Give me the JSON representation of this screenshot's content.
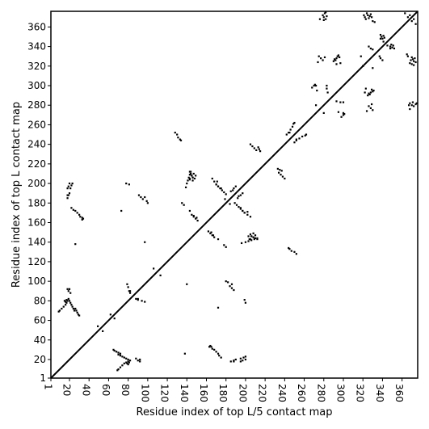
{
  "chart_data": {
    "type": "scatter",
    "xlabel": "Residue index of top L/5 contact map",
    "ylabel": "Residue index of top L contact map",
    "xlim": [
      1,
      376
    ],
    "ylim": [
      1,
      376
    ],
    "x_ticks": [
      1,
      20,
      40,
      60,
      80,
      100,
      120,
      140,
      160,
      180,
      200,
      220,
      240,
      260,
      280,
      300,
      320,
      340,
      360
    ],
    "y_ticks": [
      1,
      20,
      40,
      60,
      80,
      100,
      120,
      140,
      160,
      180,
      200,
      220,
      240,
      260,
      280,
      300,
      320,
      340,
      360
    ],
    "x_tick_labels": [
      "1",
      "20",
      "40",
      "60",
      "80",
      "100",
      "120",
      "140",
      "160",
      "180",
      "200",
      "220",
      "240",
      "260",
      "280",
      "300",
      "320",
      "340",
      "360"
    ],
    "y_tick_labels": [
      "1",
      "20",
      "40",
      "60",
      "80",
      "100",
      "120",
      "140",
      "160",
      "180",
      "200",
      "220",
      "240",
      "260",
      "280",
      "300",
      "320",
      "340",
      "360"
    ],
    "diagonal": {
      "from": [
        1,
        1
      ],
      "to": [
        376,
        376
      ]
    },
    "mark_color": "#000000",
    "series": [
      {
        "points_upper": [
          [
            9,
            69
          ],
          [
            10,
            70
          ],
          [
            12,
            72
          ],
          [
            14,
            74
          ],
          [
            16,
            76
          ],
          [
            17,
            78
          ],
          [
            18,
            80
          ],
          [
            19,
            82
          ],
          [
            20,
            80
          ],
          [
            21,
            78
          ],
          [
            22,
            76
          ],
          [
            23,
            74
          ],
          [
            24,
            72
          ],
          [
            25,
            70
          ],
          [
            26,
            72
          ],
          [
            27,
            70
          ],
          [
            28,
            68
          ],
          [
            29,
            66
          ],
          [
            30,
            65
          ],
          [
            15,
            80
          ],
          [
            16,
            79
          ],
          [
            17,
            81
          ],
          [
            18,
            92
          ],
          [
            19,
            90
          ],
          [
            20,
            92
          ],
          [
            21,
            88
          ],
          [
            18,
            185
          ],
          [
            19,
            188
          ],
          [
            20,
            190
          ],
          [
            21,
            195
          ],
          [
            22,
            198
          ],
          [
            23,
            200
          ],
          [
            20,
            200
          ],
          [
            18,
            195
          ],
          [
            22,
            175
          ],
          [
            24,
            173
          ],
          [
            26,
            172
          ],
          [
            28,
            170
          ],
          [
            30,
            168
          ],
          [
            31,
            166
          ],
          [
            33,
            165
          ],
          [
            34,
            164
          ],
          [
            26,
            138
          ],
          [
            49,
            54
          ],
          [
            62,
            66
          ],
          [
            78,
            200
          ],
          [
            81,
            199
          ],
          [
            91,
            188
          ],
          [
            93,
            186
          ],
          [
            95,
            184
          ],
          [
            97,
            186
          ],
          [
            99,
            182
          ],
          [
            100,
            180
          ],
          [
            73,
            172
          ],
          [
            79,
            97
          ],
          [
            80,
            94
          ],
          [
            81,
            90
          ],
          [
            82,
            88
          ],
          [
            90,
            82
          ],
          [
            97,
            140
          ],
          [
            106,
            113
          ],
          [
            128,
            252
          ],
          [
            130,
            250
          ],
          [
            131,
            247
          ],
          [
            133,
            245
          ],
          [
            134,
            244
          ],
          [
            135,
            180
          ],
          [
            137,
            178
          ],
          [
            139,
            196
          ],
          [
            140,
            200
          ],
          [
            141,
            203
          ],
          [
            142,
            206
          ],
          [
            143,
            209
          ],
          [
            144,
            212
          ],
          [
            145,
            208
          ],
          [
            146,
            206
          ],
          [
            147,
            210
          ],
          [
            148,
            205
          ],
          [
            149,
            208
          ],
          [
            146,
            203
          ],
          [
            143,
            205
          ],
          [
            143,
            172
          ],
          [
            145,
            168
          ],
          [
            147,
            166
          ],
          [
            149,
            164
          ],
          [
            151,
            162
          ],
          [
            163,
            33
          ],
          [
            165,
            150
          ],
          [
            167,
            147
          ],
          [
            166,
            205
          ],
          [
            168,
            202
          ],
          [
            170,
            199
          ],
          [
            172,
            197
          ],
          [
            174,
            195
          ],
          [
            176,
            193
          ],
          [
            178,
            191
          ],
          [
            180,
            189
          ],
          [
            179,
            184
          ],
          [
            185,
            192
          ],
          [
            188,
            195
          ],
          [
            190,
            197
          ],
          [
            193,
            187
          ],
          [
            195,
            175
          ],
          [
            197,
            172
          ],
          [
            199,
            170
          ],
          [
            202,
            171
          ],
          [
            205,
            240
          ],
          [
            207,
            238
          ],
          [
            209,
            236
          ],
          [
            211,
            234
          ],
          [
            213,
            237
          ],
          [
            214,
            235
          ],
          [
            215,
            233
          ],
          [
            204,
            143
          ],
          [
            206,
            146
          ],
          [
            208,
            145
          ],
          [
            210,
            144
          ],
          [
            212,
            143
          ],
          [
            188,
            18
          ],
          [
            197,
            19
          ],
          [
            242,
            250
          ],
          [
            244,
            252
          ],
          [
            246,
            255
          ],
          [
            248,
            258
          ],
          [
            249,
            261
          ],
          [
            250,
            262
          ],
          [
            252,
            245
          ],
          [
            268,
            298
          ],
          [
            270,
            300
          ],
          [
            271,
            301
          ],
          [
            273,
            295
          ],
          [
            272,
            280
          ],
          [
            275,
            330
          ],
          [
            277,
            328
          ],
          [
            279,
            326
          ],
          [
            281,
            329
          ],
          [
            283,
            300
          ],
          [
            284,
            293
          ],
          [
            279,
            372
          ],
          [
            280,
            370
          ],
          [
            281,
            374
          ],
          [
            282,
            375
          ],
          [
            283,
            371
          ],
          [
            276,
            368
          ],
          [
            290,
            325
          ],
          [
            291,
            327
          ],
          [
            292,
            326
          ],
          [
            293,
            328
          ],
          [
            294,
            330
          ],
          [
            295,
            331
          ],
          [
            296,
            329
          ],
          [
            297,
            283
          ],
          [
            300,
            272
          ],
          [
            318,
            330
          ],
          [
            320,
            320
          ],
          [
            322,
            293
          ],
          [
            323,
            297
          ],
          [
            324,
            274
          ],
          [
            326,
            340
          ],
          [
            328,
            338
          ],
          [
            321,
            372
          ],
          [
            322,
            370
          ],
          [
            323,
            368
          ],
          [
            324,
            374
          ],
          [
            325,
            372
          ],
          [
            326,
            369
          ],
          [
            327,
            371
          ],
          [
            328,
            373
          ],
          [
            329,
            370
          ],
          [
            337,
            330
          ],
          [
            338,
            352
          ],
          [
            339,
            350
          ],
          [
            340,
            348
          ],
          [
            341,
            351
          ],
          [
            342,
            349
          ],
          [
            345,
            341
          ],
          [
            348,
            338
          ],
          [
            363,
            374
          ],
          [
            365,
            332
          ],
          [
            366,
            330
          ],
          [
            367,
            280
          ],
          [
            368,
            282
          ],
          [
            370,
            366
          ],
          [
            372,
            368
          ]
        ]
      }
    ]
  }
}
